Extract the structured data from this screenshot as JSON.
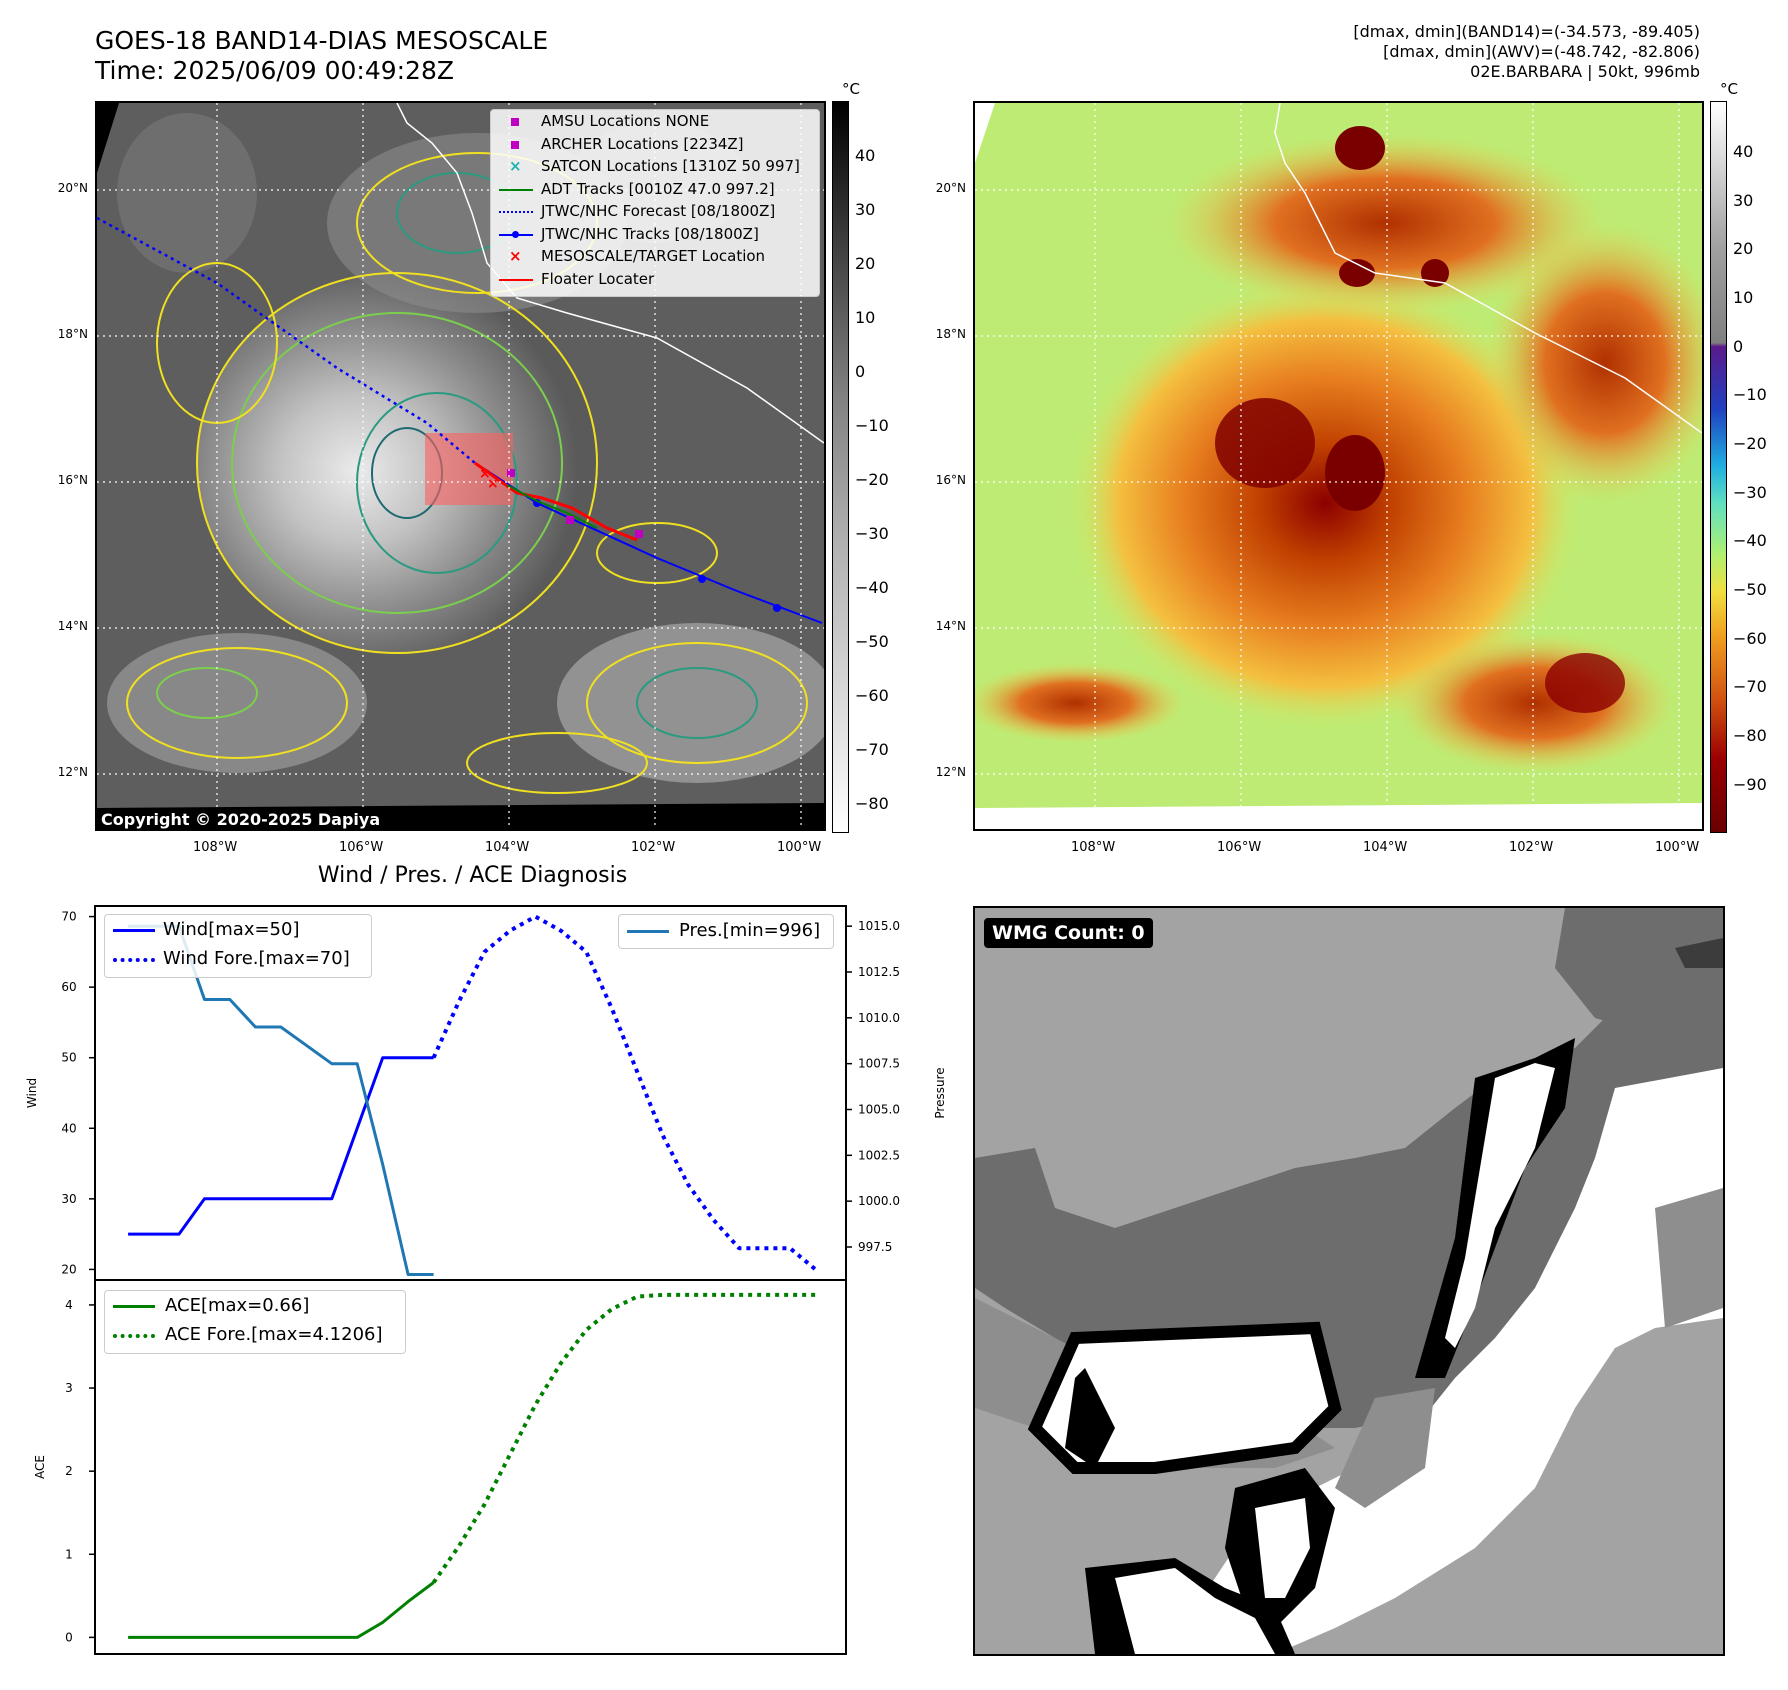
{
  "header": {
    "title_line1": "GOES-18 BAND14-DIAS MESOSCALE",
    "title_line2": "Time: 2025/06/09 00:49:28Z",
    "right_line1": "[dmax, dmin](BAND14)=(-34.573, -89.405)",
    "right_line2": "[dmax, dmin](AWV)=(-48.742, -82.806)",
    "right_line3": "02E.BARBARA | 50kt, 996mb"
  },
  "map_axes": {
    "lat_labels": [
      "20°N",
      "18°N",
      "16°N",
      "14°N",
      "12°N"
    ],
    "lon_labels": [
      "108°W",
      "106°W",
      "104°W",
      "102°W",
      "100°W"
    ]
  },
  "ir_panel": {
    "legend": [
      {
        "label": "AMSU Locations NONE",
        "color": "#c000c0",
        "mark": "square"
      },
      {
        "label": "ARCHER Locations [2234Z]",
        "color": "#c000c0",
        "mark": "square"
      },
      {
        "label": "SATCON Locations [1310Z 50 997]",
        "color": "#20b0b0",
        "mark": "x"
      },
      {
        "label": "ADT Tracks [0010Z 47.0 997.2]",
        "color": "#008000",
        "mark": "line"
      },
      {
        "label": "JTWC/NHC Forecast [08/1800Z]",
        "color": "#0000ff",
        "mark": "dotted"
      },
      {
        "label": "JTWC/NHC Tracks [08/1800Z]",
        "color": "#0000ff",
        "mark": "line-dot"
      },
      {
        "label": "MESOSCALE/TARGET Location",
        "color": "#ff0000",
        "mark": "x"
      },
      {
        "label": "Floater Locater",
        "color": "#ff0000",
        "mark": "line"
      }
    ],
    "copyright": "Copyright © 2020-2025 Dapiya",
    "colorbar_unit": "°C",
    "colorbar_ticks": [
      "40",
      "30",
      "20",
      "10",
      "0",
      "−10",
      "−20",
      "−30",
      "−40",
      "−50",
      "−60",
      "−70",
      "−80"
    ]
  },
  "awv_panel": {
    "colorbar_unit": "°C",
    "colorbar_ticks": [
      "40",
      "30",
      "20",
      "10",
      "0",
      "−10",
      "−20",
      "−30",
      "−40",
      "−50",
      "−60",
      "−70",
      "−80",
      "−90"
    ]
  },
  "diagnosis": {
    "title": "Wind / Pres. / ACE Diagnosis",
    "wind_ylabel": "Wind",
    "pres_ylabel": "Pressure",
    "ace_ylabel": "ACE",
    "wind_ticks": [
      "70",
      "60",
      "50",
      "40",
      "30",
      "20"
    ],
    "pres_ticks": [
      "1015.0",
      "1012.5",
      "1010.0",
      "1007.5",
      "1005.0",
      "1002.5",
      "1000.0",
      "997.5"
    ],
    "ace_ticks": [
      "4",
      "3",
      "2",
      "1",
      "0"
    ],
    "legend_wind": "Wind[max=50]",
    "legend_wind_fore": "Wind Fore.[max=70]",
    "legend_pres": "Pres.[min=996]",
    "legend_ace": "ACE[max=0.66]",
    "legend_ace_fore": "ACE Fore.[max=4.1206]"
  },
  "wmg": {
    "label": "WMG Count: 0"
  },
  "chart_data": [
    {
      "type": "line",
      "title": "Wind / Pres. / ACE Diagnosis",
      "ylabel": "Wind",
      "ylim": [
        18.5,
        71.5
      ],
      "xlim": [
        -1.3,
        28.2
      ],
      "series": [
        {
          "name": "Wind[max=50]",
          "color": "#0000ff",
          "style": "solid",
          "x": [
            0,
            1,
            2,
            3,
            4,
            5,
            6,
            7,
            8,
            9,
            10,
            11,
            12
          ],
          "y": [
            25,
            25,
            25,
            30,
            30,
            30,
            30,
            30,
            30,
            40,
            50,
            50,
            50
          ]
        },
        {
          "name": "Wind Fore.[max=70]",
          "color": "#0000ff",
          "style": "dotted",
          "x": [
            12,
            13,
            14,
            15,
            16,
            17,
            18,
            19,
            20,
            21,
            22,
            23,
            24,
            25,
            26,
            27
          ],
          "y": [
            50,
            58,
            65,
            68,
            70,
            68,
            65,
            57,
            48,
            39,
            32,
            27,
            23,
            23,
            23,
            20
          ]
        }
      ]
    },
    {
      "type": "line",
      "ylabel": "Pressure",
      "ylim": [
        995.7,
        1016.1
      ],
      "series": [
        {
          "name": "Pres.[min=996]",
          "color": "#1f77b4",
          "style": "solid",
          "x": [
            0,
            1,
            2,
            3,
            4,
            5,
            6,
            7,
            8,
            9,
            10,
            11,
            12
          ],
          "y": [
            1015,
            1015,
            1015,
            1011,
            1011,
            1009.5,
            1009.5,
            1008.5,
            1007.5,
            1007.5,
            1002,
            996,
            996
          ]
        }
      ]
    },
    {
      "type": "line",
      "ylabel": "ACE",
      "ylim": [
        -0.2,
        4.3
      ],
      "series": [
        {
          "name": "ACE[max=0.66]",
          "color": "#008000",
          "style": "solid",
          "x": [
            0,
            1,
            2,
            3,
            4,
            5,
            6,
            7,
            8,
            9,
            10,
            11,
            12
          ],
          "y": [
            0,
            0,
            0,
            0,
            0,
            0,
            0,
            0,
            0,
            0,
            0.18,
            0.43,
            0.66
          ]
        },
        {
          "name": "ACE Fore.[max=4.1206]",
          "color": "#008000",
          "style": "dotted",
          "x": [
            12,
            13,
            14,
            15,
            16,
            17,
            18,
            19,
            20,
            21,
            22,
            23,
            24,
            25,
            26,
            27
          ],
          "y": [
            0.66,
            1.1,
            1.6,
            2.2,
            2.8,
            3.3,
            3.7,
            3.95,
            4.1,
            4.1206,
            4.1206,
            4.1206,
            4.1206,
            4.1206,
            4.1206,
            4.1206
          ]
        }
      ]
    }
  ]
}
